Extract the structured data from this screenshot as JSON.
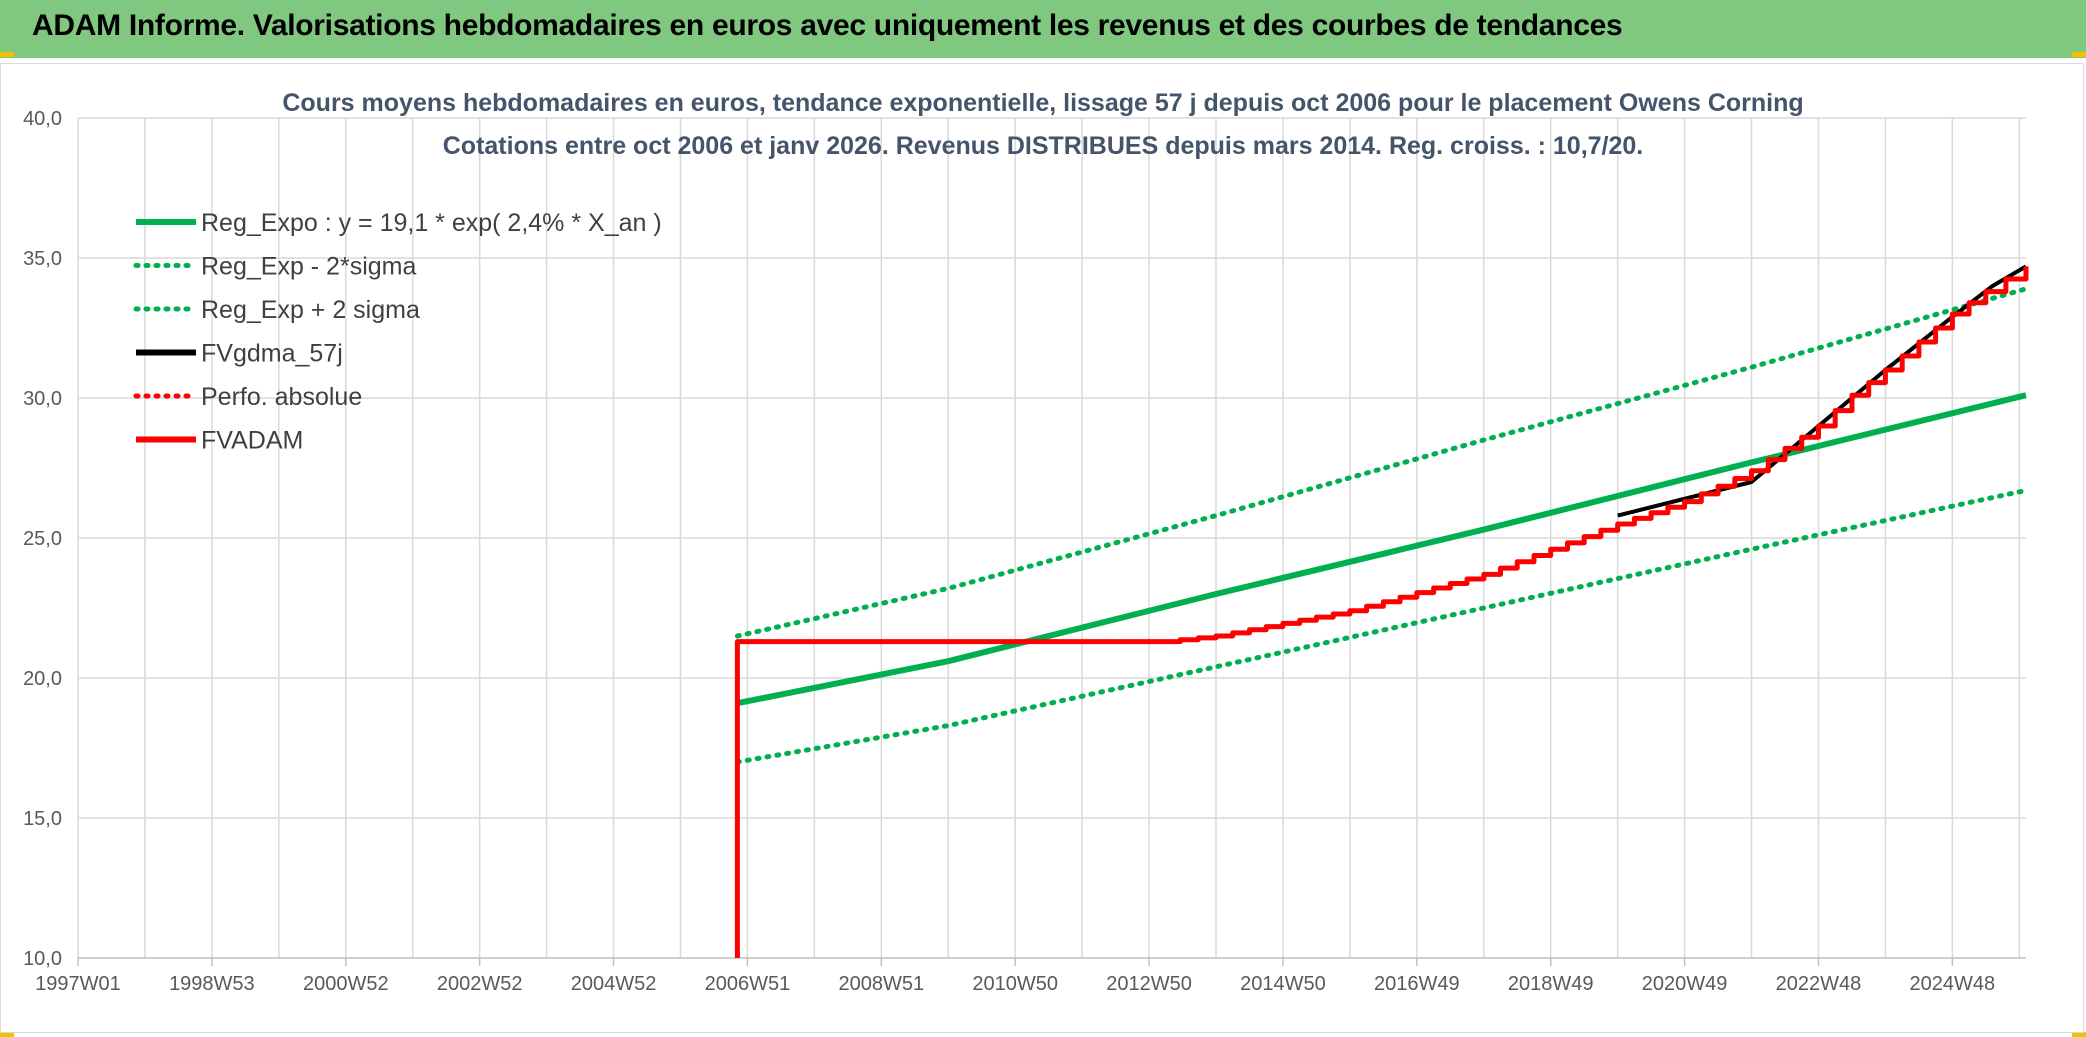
{
  "header": {
    "title": "ADAM Informe. Valorisations hebdomadaires en euros avec uniquement les revenus et des courbes de tendances"
  },
  "colors": {
    "banner": "#80c880",
    "accent": "#f2c200",
    "green": "#00b050",
    "red": "#ff0000",
    "black": "#000000",
    "grid": "#d9d9d9"
  },
  "chart_data": {
    "type": "line",
    "title_lines": [
      "Cours moyens hebdomadaires en euros, tendance exponentielle, lissage 57 j depuis oct 2006 pour le placement Owens Corning",
      "Cotations entre oct 2006 et janv 2026. Revenus DISTRIBUES depuis mars 2014. Reg. croiss. : 10,7/20."
    ],
    "x_tick_labels": [
      "1997W01",
      "1998W53",
      "2000W52",
      "2002W52",
      "2004W52",
      "2006W51",
      "2008W51",
      "2010W50",
      "2012W50",
      "2014W50",
      "2016W49",
      "2018W49",
      "2020W49",
      "2022W48",
      "2024W48"
    ],
    "x_range_years": [
      1997.0,
      2026.1
    ],
    "y_tick_labels": [
      "10,0",
      "15,0",
      "20,0",
      "25,0",
      "30,0",
      "35,0",
      "40,0"
    ],
    "ylim": [
      10,
      40
    ],
    "grid": true,
    "legend_position": "top-left",
    "legend": [
      {
        "label": "Reg_Expo : y = 19,1 * exp( 2,4% *  X_an )",
        "color": "#00b050",
        "style": "solid"
      },
      {
        "label": "Reg_Exp - 2*sigma",
        "color": "#00b050",
        "style": "dotted"
      },
      {
        "label": "Reg_Exp + 2 sigma",
        "color": "#00b050",
        "style": "dotted"
      },
      {
        "label": "FVgdma_57j",
        "color": "#000000",
        "style": "solid"
      },
      {
        "label": "Perfo. absolue",
        "color": "#ff0000",
        "style": "dotted"
      },
      {
        "label": "FVADAM",
        "color": "#ff0000",
        "style": "solid"
      }
    ],
    "series": [
      {
        "name": "Reg_Expo : y = 19,1 * exp( 2,4% *  X_an )",
        "x": [
          2006.85,
          2010.0,
          2014.0,
          2018.0,
          2022.0,
          2026.1
        ],
        "values": [
          19.1,
          20.6,
          23.0,
          25.3,
          27.7,
          30.1
        ]
      },
      {
        "name": "Reg_Exp - 2*sigma",
        "x": [
          2006.85,
          2010.0,
          2014.0,
          2018.0,
          2022.0,
          2026.1
        ],
        "values": [
          17.0,
          18.3,
          20.4,
          22.5,
          24.6,
          26.7
        ]
      },
      {
        "name": "Reg_Exp + 2 sigma",
        "x": [
          2006.85,
          2010.0,
          2014.0,
          2018.0,
          2022.0,
          2026.1
        ],
        "values": [
          21.5,
          23.2,
          25.8,
          28.5,
          31.1,
          33.9
        ]
      },
      {
        "name": "FVgdma_57j",
        "x": [
          2020.0,
          2022.0,
          2023.0,
          2024.0,
          2025.0,
          2025.6,
          2026.1
        ],
        "values": [
          25.8,
          27.0,
          29.0,
          31.0,
          32.9,
          34.0,
          34.7
        ]
      },
      {
        "name": "FVADAM",
        "x": [
          2006.85,
          2006.85,
          2013.2,
          2014.0,
          2016.0,
          2018.0,
          2020.0,
          2021.0,
          2022.0,
          2022.5,
          2023.0,
          2023.5,
          2024.0,
          2024.5,
          2025.0,
          2025.5,
          2026.1
        ],
        "values": [
          10.0,
          21.3,
          21.3,
          21.5,
          22.4,
          23.7,
          25.5,
          26.3,
          27.4,
          28.2,
          29.0,
          30.1,
          31.0,
          32.0,
          33.0,
          33.8,
          34.7
        ]
      }
    ]
  }
}
